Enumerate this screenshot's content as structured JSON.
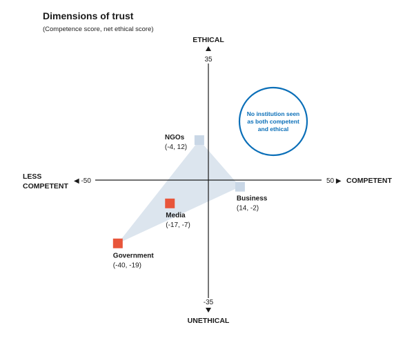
{
  "chart_data": {
    "type": "scatter",
    "title": "Dimensions of trust",
    "subtitle": "(Competence score, net ethical score)",
    "xlim": [
      -50,
      50
    ],
    "ylim": [
      -35,
      35
    ],
    "grid": false,
    "axis_labels": {
      "top": "ETHICAL",
      "bottom": "UNETHICAL",
      "left_line1": "LESS",
      "left_line2": "COMPETENT",
      "right": "COMPETENT"
    },
    "tick_labels": {
      "x_min": "◀ -50",
      "x_max": "50 ▶",
      "y_max": "35",
      "y_min": "-35"
    },
    "points": [
      {
        "name": "NGOs",
        "label": "(-4, 12)",
        "x": -4,
        "y": 12,
        "color": "#c9d7e6"
      },
      {
        "name": "Business",
        "label": "(14, -2)",
        "x": 14,
        "y": -2,
        "color": "#c9d7e6"
      },
      {
        "name": "Media",
        "label": "(-17, -7)",
        "x": -17,
        "y": -7,
        "color": "#e8553a"
      },
      {
        "name": "Government",
        "label": "(-40, -19)",
        "x": -40,
        "y": -19,
        "color": "#e8553a"
      }
    ],
    "region_polygon": [
      "NGOs",
      "Business",
      "Government"
    ],
    "region_color": "#dce5ee",
    "annotation": {
      "lines": [
        "No institution seen",
        "as both competent",
        "and ethical"
      ],
      "color": "#0b6fb8"
    }
  }
}
